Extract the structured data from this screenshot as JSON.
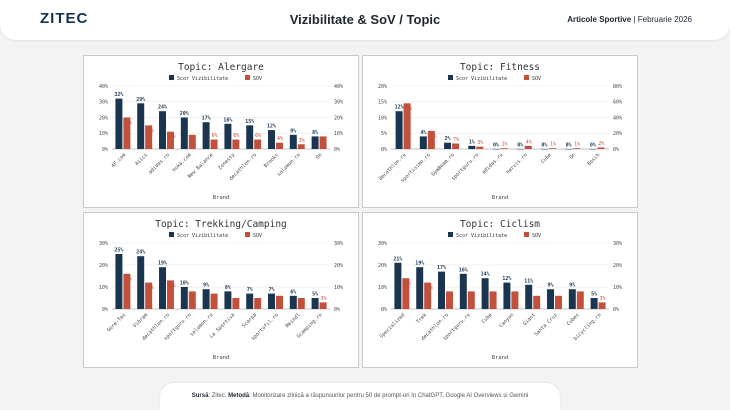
{
  "header": {
    "logo": "ZITEC",
    "title": "Vizibilitate & SoV / Topic",
    "category": "Articole Sportive",
    "separator": " | ",
    "period": "Februarie 2026"
  },
  "legend": {
    "series1": "Scor Vizibilitate",
    "series2": "SOV"
  },
  "colors": {
    "series1": "#1a3550",
    "series2": "#c2503a"
  },
  "xlabel": "Brand",
  "footer": {
    "source_label": "Sursă",
    "source_value": "Zitec",
    "method_label": "Metodă",
    "method_value": "Monitorizare zilnică a răspunsurilor pentru 50 de prompt-uri în ChatGPT, Google AI Overviews și Gemini"
  },
  "chart_data": [
    {
      "type": "bar",
      "title": "Topic: Alergare",
      "xlabel": "Brand",
      "categories": [
        "4F.com",
        "Asics",
        "adidas.ro",
        "hoka.com",
        "New Balance",
        "Zonesty",
        "decathlon.ro",
        "Brooks",
        "salomon.ro",
        "On"
      ],
      "series": [
        {
          "name": "Scor Vizibilitate",
          "values": [
            32,
            29,
            24,
            20,
            17,
            16,
            15,
            12,
            9,
            8
          ]
        },
        {
          "name": "SOV",
          "values": [
            20,
            15,
            11,
            9,
            6,
            6,
            6,
            4,
            3,
            8
          ]
        }
      ],
      "ylim": [
        0,
        40
      ],
      "y_ticks": [
        "0%",
        "10%",
        "20%",
        "30%",
        "40%"
      ],
      "y2lim": [
        0,
        40
      ],
      "y2_ticks": [
        "0%",
        "10%",
        "20%",
        "30%",
        "40%"
      ],
      "labels1": [
        "32%",
        "29%",
        "24%",
        "20%",
        "17%",
        "16%",
        "15%",
        "12%",
        "9%",
        "8%"
      ],
      "labels2": [
        "20%",
        "15%",
        "11%",
        "9%",
        "6%",
        "6%",
        "6%",
        "4%",
        "3%",
        "8%"
      ]
    },
    {
      "type": "bar",
      "title": "Topic: Fitness",
      "xlabel": "Brand",
      "categories": [
        "decathlon.ro",
        "sportisimo.ro",
        "GymBeam.ro",
        "sportguru.ro",
        "adidas.ro",
        "hervis.ro",
        "Cube",
        "On",
        "Bosch"
      ],
      "series": [
        {
          "name": "Scor Vizibilitate",
          "values": [
            12,
            4,
            2,
            1,
            0,
            0,
            0,
            0,
            0
          ]
        },
        {
          "name": "SOV",
          "values": [
            58,
            23,
            7,
            3,
            1,
            4,
            1,
            1,
            2
          ]
        }
      ],
      "ylim": [
        0,
        20
      ],
      "y_ticks": [
        "0%",
        "5%",
        "10%",
        "15%",
        "20%"
      ],
      "y2lim": [
        0,
        80
      ],
      "y2_ticks": [
        "0%",
        "20%",
        "40%",
        "60%",
        "80%"
      ],
      "labels1": [
        "12%",
        "4%",
        "2%",
        "1%",
        "0%",
        "0%",
        "0%",
        "0%",
        "0%"
      ],
      "labels2": [
        "58%",
        "23%",
        "7%",
        "3%",
        "1%",
        "4%",
        "1%",
        "1%",
        "2%"
      ]
    },
    {
      "type": "bar",
      "title": "Topic: Trekking/Camping",
      "xlabel": "Brand",
      "categories": [
        "Gore-Tex",
        "Vibram",
        "decathlon.ro",
        "sportguru.ro",
        "salomon.ro",
        "La Sportiva",
        "Scarpa",
        "sportofil.ro",
        "Meindl",
        "Scamping.ro"
      ],
      "series": [
        {
          "name": "Scor Vizibilitate",
          "values": [
            25,
            24,
            19,
            10,
            9,
            8,
            7,
            7,
            6,
            5
          ]
        },
        {
          "name": "SOV",
          "values": [
            16,
            12,
            13,
            8,
            7,
            5,
            5,
            6,
            5,
            3
          ]
        }
      ],
      "ylim": [
        0,
        30
      ],
      "y_ticks": [
        "0%",
        "10%",
        "20%",
        "30%"
      ],
      "y2lim": [
        0,
        30
      ],
      "y2_ticks": [
        "0%",
        "10%",
        "20%",
        "30%"
      ],
      "labels1": [
        "25%",
        "24%",
        "19%",
        "10%",
        "9%",
        "8%",
        "7%",
        "7%",
        "6%",
        "5%"
      ],
      "labels2": [
        "16%",
        "12%",
        "13%",
        "8%",
        "7%",
        "5%",
        "5%",
        "6%",
        "5%",
        "3%"
      ]
    },
    {
      "type": "bar",
      "title": "Topic: Ciclism",
      "xlabel": "Brand",
      "categories": [
        "Specialized",
        "Trek",
        "decathlon.ro",
        "sportguru.ro",
        "Cube",
        "Canyon",
        "Giant",
        "Santa Cruz",
        "Cubes",
        "bicycling.ro"
      ],
      "series": [
        {
          "name": "Scor Vizibilitate",
          "values": [
            21,
            19,
            17,
            16,
            14,
            12,
            11,
            9,
            9,
            5
          ]
        },
        {
          "name": "SOV",
          "values": [
            14,
            12,
            8,
            8,
            8,
            8,
            6,
            6,
            8,
            3
          ]
        }
      ],
      "ylim": [
        0,
        30
      ],
      "y_ticks": [
        "0%",
        "10%",
        "20%",
        "30%"
      ],
      "y2lim": [
        0,
        30
      ],
      "y2_ticks": [
        "0%",
        "10%",
        "20%",
        "30%"
      ],
      "labels1": [
        "21%",
        "19%",
        "17%",
        "16%",
        "14%",
        "12%",
        "11%",
        "9%",
        "9%",
        "5%"
      ],
      "labels2": [
        "14%",
        "12%",
        "8%",
        "8%",
        "8%",
        "8%",
        "6%",
        "6%",
        "8%",
        "3%"
      ]
    }
  ]
}
